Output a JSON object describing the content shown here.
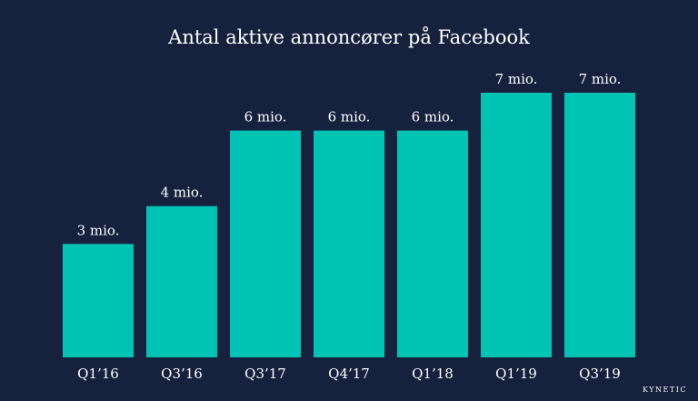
{
  "colors": {
    "background": "#16213e",
    "bar": "#00c4b3",
    "text": "#ffffff"
  },
  "brand": "KYNETIC",
  "chart_data": {
    "type": "bar",
    "title": "Antal aktive annoncører på Facebook",
    "xlabel": "",
    "ylabel": "",
    "categories": [
      "Q1’16",
      "Q3’16",
      "Q3’17",
      "Q4’17",
      "Q1’18",
      "Q1’19",
      "Q3’19"
    ],
    "values": [
      3,
      4,
      6,
      6,
      6,
      7,
      7
    ],
    "value_labels": [
      "3 mio.",
      "4 mio.",
      "6 mio.",
      "6 mio.",
      "6 mio.",
      "7 mio.",
      "7 mio."
    ],
    "unit": "mio.",
    "ylim": [
      0,
      7.5
    ],
    "grid": false,
    "legend": "none"
  }
}
